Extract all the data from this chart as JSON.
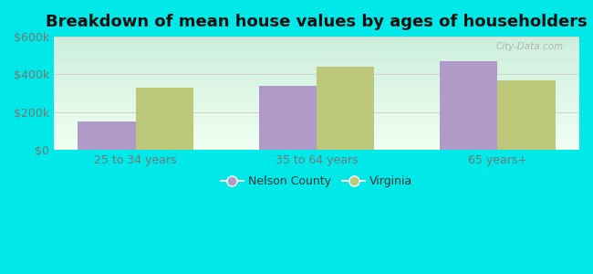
{
  "title": "Breakdown of mean house values by ages of householders",
  "categories": [
    "25 to 34 years",
    "35 to 64 years",
    "65 years+"
  ],
  "nelson_county": [
    150000,
    340000,
    470000
  ],
  "virginia": [
    330000,
    440000,
    370000
  ],
  "nelson_color": "#b09bc8",
  "virginia_color": "#bdc87a",
  "bar_width": 0.32,
  "ylim": [
    0,
    600000
  ],
  "yticks": [
    0,
    200000,
    400000,
    600000
  ],
  "ytick_labels": [
    "$0",
    "$200k",
    "$400k",
    "$600k"
  ],
  "bg_color": "#00e8e8",
  "plot_bg_top_left": "#cceedd",
  "plot_bg_bottom_right": "#f0fff0",
  "legend_nelson": "Nelson County",
  "legend_virginia": "Virginia",
  "title_fontsize": 13,
  "tick_fontsize": 9,
  "legend_fontsize": 9,
  "watermark": "City-Data.com"
}
